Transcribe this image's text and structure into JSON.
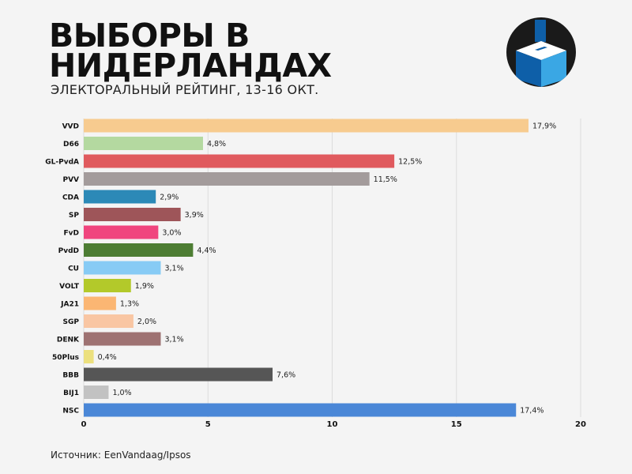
{
  "header": {
    "title_line1": "ВЫБОРЫ В",
    "title_line2": "НИДЕРЛАНДАХ",
    "subtitle": "ЭЛЕКТОРАЛЬНЫЙ РЕЙТИНГ, 13-16 ОКТ."
  },
  "logo": {
    "icon": "ballot-box-icon",
    "colors": {
      "dark": "#1a1a1a",
      "blue_dark": "#0e5fa8",
      "blue_light": "#3aa7e4"
    }
  },
  "footer": {
    "source": "Источник: EenVandaag/Ipsos"
  },
  "chart_data": {
    "type": "bar",
    "orientation": "horizontal",
    "categories": [
      "VVD",
      "D66",
      "GL-PvdA",
      "PVV",
      "CDA",
      "SP",
      "FvD",
      "PvdD",
      "CU",
      "VOLT",
      "JA21",
      "SGP",
      "DENK",
      "50Plus",
      "BBB",
      "BIJ1",
      "NSC"
    ],
    "values": [
      17.9,
      4.8,
      12.5,
      11.5,
      2.9,
      3.9,
      3.0,
      4.4,
      3.1,
      1.9,
      1.3,
      2.0,
      3.1,
      0.4,
      7.6,
      1.0,
      17.4
    ],
    "labels": [
      "17,9%",
      "4,8%",
      "12,5%",
      "11,5%",
      "2,9%",
      "3,9%",
      "3,0%",
      "4,4%",
      "3,1%",
      "1,9%",
      "1,3%",
      "2,0%",
      "3,1%",
      "0,4%",
      "7,6%",
      "1,0%",
      "17,4%"
    ],
    "colors": [
      "#f7cb8f",
      "#b4d9a0",
      "#e05a5e",
      "#a39b9b",
      "#2c89b7",
      "#9e5559",
      "#f0457e",
      "#4d7d33",
      "#87cbf5",
      "#b3c92a",
      "#fbb673",
      "#f9c6a3",
      "#9e7272",
      "#ece07e",
      "#565656",
      "#c2c2c2",
      "#4a87d7"
    ],
    "xlim": [
      0,
      20
    ],
    "xticks": [
      "0",
      "5",
      "10",
      "15",
      "20"
    ],
    "grid": true,
    "xlabel": "",
    "ylabel": ""
  }
}
